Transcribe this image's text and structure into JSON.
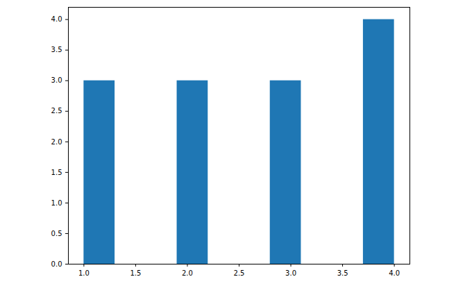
{
  "chart_data": {
    "type": "histogram",
    "bins": [
      1.0,
      1.3,
      1.6,
      1.9,
      2.2,
      2.5,
      2.8,
      3.1,
      3.4,
      3.7,
      4.0
    ],
    "values": [
      3,
      0,
      0,
      3,
      0,
      0,
      3,
      0,
      0,
      4
    ],
    "color": "#1f77b4",
    "xlim": [
      0.85,
      4.15
    ],
    "xticks": [
      {
        "value": 1,
        "label": "1.0"
      },
      {
        "value": 1.5,
        "label": "1.5"
      },
      {
        "value": 2,
        "label": "2.0"
      },
      {
        "value": 2.5,
        "label": "2.5"
      },
      {
        "value": 3,
        "label": "3.0"
      },
      {
        "value": 3.5,
        "label": "3.5"
      },
      {
        "value": 4,
        "label": "4.0"
      }
    ],
    "ylim": [
      0,
      4.2
    ],
    "yticks": [
      {
        "value": 0,
        "label": "0.0"
      },
      {
        "value": 0.5,
        "label": "0.5"
      },
      {
        "value": 1,
        "label": "1.0"
      },
      {
        "value": 1.5,
        "label": "1.5"
      },
      {
        "value": 2,
        "label": "2.0"
      },
      {
        "value": 2.5,
        "label": "2.5"
      },
      {
        "value": 3,
        "label": "3.0"
      },
      {
        "value": 3.5,
        "label": "3.5"
      },
      {
        "value": 4,
        "label": "4.0"
      }
    ],
    "grid": false
  }
}
